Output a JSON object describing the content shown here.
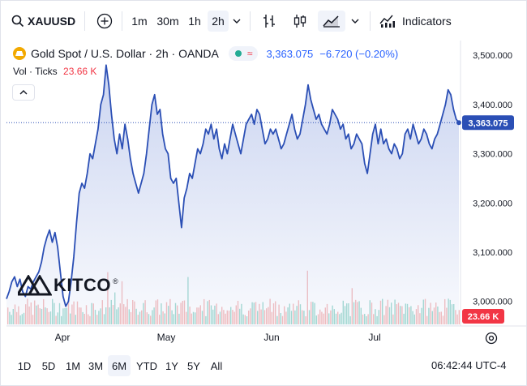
{
  "toolbar": {
    "symbol": "XAUUSD",
    "intervals": [
      "1m",
      "30m",
      "1h",
      "2h"
    ],
    "active_interval": "2h",
    "indicators_label": "Indicators"
  },
  "legend": {
    "title": "Gold Spot / U.S. Dollar · 2h · OANDA",
    "last_price": "3,363.075",
    "change": "−6.720 (−0.20%)",
    "vol_label": "Vol · Ticks",
    "vol_value": "23.66 K"
  },
  "price_axis": {
    "labels": [
      "3,500.000",
      "3,400.000",
      "3,300.000",
      "3,200.000",
      "3,100.000",
      "3,000.000"
    ],
    "current_price_tag": "3,363.075",
    "current_volume_tag": "23.66 K"
  },
  "watermark": "KITCO",
  "bottom": {
    "ranges": [
      "1D",
      "5D",
      "1M",
      "3M",
      "6M",
      "YTD",
      "1Y",
      "5Y",
      "All"
    ],
    "active_range": "6M",
    "time": "06:42:44 UTC-4"
  },
  "colors": {
    "line": "#2b4fb5",
    "area_top": "#c5d0ef",
    "vol_up": "#7ccbbd",
    "vol_down": "#f0a2a2",
    "accent": "#2962ff",
    "negative": "#f23645"
  },
  "chart_data": {
    "type": "area",
    "x_tick_labels": [
      "Apr",
      "May",
      "Jun",
      "Jul"
    ],
    "ylim": [
      2950,
      3530
    ],
    "y_ticks": [
      3000,
      3100,
      3200,
      3300,
      3400,
      3500
    ],
    "last_value": 3363.075,
    "series": [
      {
        "values": [
          3005,
          3020,
          3040,
          3050,
          3030,
          3045,
          3020,
          3010,
          3030,
          3025,
          3040,
          3050,
          3060,
          3080,
          3110,
          3130,
          3145,
          3120,
          3140,
          3110,
          3060,
          3010,
          2990,
          3000,
          3040,
          3090,
          3160,
          3220,
          3240,
          3230,
          3260,
          3300,
          3290,
          3320,
          3350,
          3400,
          3420,
          3480,
          3440,
          3380,
          3330,
          3300,
          3340,
          3310,
          3360,
          3330,
          3290,
          3260,
          3240,
          3220,
          3240,
          3260,
          3300,
          3350,
          3400,
          3420,
          3380,
          3390,
          3340,
          3310,
          3300,
          3250,
          3240,
          3250,
          3200,
          3150,
          3210,
          3230,
          3260,
          3250,
          3280,
          3310,
          3300,
          3320,
          3350,
          3340,
          3360,
          3330,
          3350,
          3310,
          3290,
          3320,
          3300,
          3330,
          3360,
          3340,
          3320,
          3300,
          3330,
          3360,
          3370,
          3380,
          3360,
          3390,
          3380,
          3350,
          3320,
          3330,
          3350,
          3340,
          3350,
          3330,
          3310,
          3320,
          3340,
          3360,
          3380,
          3350,
          3330,
          3340,
          3370,
          3400,
          3440,
          3410,
          3390,
          3370,
          3380,
          3360,
          3350,
          3340,
          3360,
          3390,
          3380,
          3370,
          3350,
          3360,
          3330,
          3340,
          3310,
          3320,
          3340,
          3330,
          3320,
          3280,
          3260,
          3300,
          3340,
          3360,
          3320,
          3350,
          3320,
          3330,
          3310,
          3300,
          3320,
          3310,
          3290,
          3300,
          3340,
          3350,
          3330,
          3360,
          3340,
          3320,
          3330,
          3350,
          3340,
          3320,
          3310,
          3330,
          3340,
          3360,
          3380,
          3400,
          3430,
          3420,
          3390,
          3370,
          3363.075
        ]
      }
    ],
    "volume": {
      "last_value_label": "23.66 K"
    }
  }
}
